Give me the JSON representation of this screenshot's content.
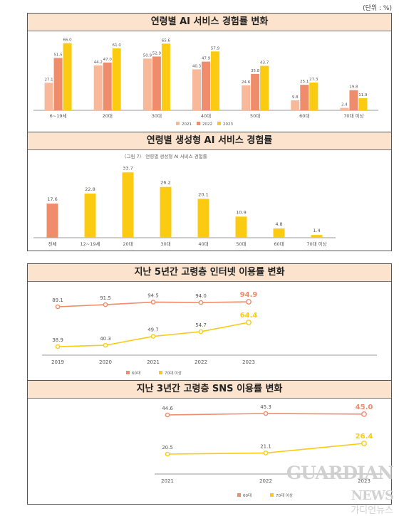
{
  "unit_label": "(단위 : %)",
  "watermark": {
    "brand": "GUARDIAN",
    "brand_suffix": "NEWS",
    "sub": "가디언뉴스"
  },
  "chart_data": [
    {
      "type": "bar",
      "title": "연령별 AI 서비스 경험률 변화",
      "categories": [
        "6~19세",
        "20대",
        "30대",
        "40대",
        "50대",
        "60대",
        "70대 이상"
      ],
      "series": [
        {
          "name": "2021",
          "color": "#f7b99a",
          "values": [
            27.1,
            44.2,
            50.9,
            40.3,
            24.6,
            9.8,
            2.4
          ]
        },
        {
          "name": "2022",
          "color": "#ee8c6c",
          "values": [
            51.5,
            47.0,
            52.9,
            47.9,
            35.8,
            25.1,
            19.8
          ]
        },
        {
          "name": "2023",
          "color": "#fbcb12",
          "values": [
            66.0,
            61.0,
            65.6,
            57.9,
            43.7,
            27.3,
            11.9
          ]
        }
      ],
      "labels": [
        [
          "27.1",
          "44.2",
          "50.9",
          "40.3",
          "24.6",
          "9.8",
          "2.4"
        ],
        [
          "51.5",
          "47.0",
          "52.9",
          "47.9",
          "35.8",
          "25.1",
          "19.8"
        ],
        [
          "66.0",
          "61.0",
          "65.6",
          "57.9",
          "43.7",
          "27.3",
          "11.9"
        ]
      ],
      "ylim": [
        0,
        70
      ],
      "legend_position": "bottom"
    },
    {
      "type": "bar",
      "title": "연령별 생성형 AI 서비스 경험률",
      "subtitle": "〈그림 7〉 연령별 생성형 AI 서비스 경험률",
      "categories": [
        "전체",
        "12~19세",
        "20대",
        "30대",
        "40대",
        "50대",
        "60대",
        "70대 이상"
      ],
      "values": [
        17.6,
        22.8,
        33.7,
        26.2,
        20.1,
        10.9,
        4.8,
        1.4
      ],
      "labels": [
        "17.6",
        "22.8",
        "33.7",
        "26.2",
        "20.1",
        "10.9",
        "4.8",
        "1.4"
      ],
      "colors": [
        "#ee8c6c",
        "#fbcb12",
        "#fbcb12",
        "#fbcb12",
        "#fbcb12",
        "#fbcb12",
        "#fbcb12",
        "#fbcb12"
      ],
      "ylim": [
        0,
        36
      ]
    },
    {
      "type": "line",
      "title": "지난 5년간 고령층 인터넷 이용률 변화",
      "x": [
        "2019",
        "2020",
        "2021",
        "2022",
        "2023"
      ],
      "series": [
        {
          "name": "60대",
          "color": "#ee8c6c",
          "values": [
            89.1,
            91.5,
            94.5,
            94.0,
            94.9
          ],
          "labels": [
            "89.1",
            "91.5",
            "94.5",
            "94.0",
            "94.9"
          ]
        },
        {
          "name": "70대 이상",
          "color": "#fbcb12",
          "values": [
            38.9,
            40.3,
            49.7,
            54.7,
            64.4
          ],
          "labels": [
            "38.9",
            "40.3",
            "49.7",
            "54.7",
            "64.4"
          ]
        }
      ],
      "legend_position": "bottom"
    },
    {
      "type": "line",
      "title": "지난 3년간 고령층 SNS 이용률 변화",
      "x": [
        "2021",
        "2022",
        "2023"
      ],
      "series": [
        {
          "name": "60대",
          "color": "#ee8c6c",
          "values": [
            44.6,
            45.3,
            45.0
          ],
          "labels": [
            "44.6",
            "45.3",
            "45.0"
          ]
        },
        {
          "name": "70대 이상",
          "color": "#fbcb12",
          "values": [
            20.5,
            21.1,
            26.4
          ],
          "labels": [
            "20.5",
            "21.1",
            "26.4"
          ]
        }
      ],
      "legend_position": "bottom"
    }
  ]
}
